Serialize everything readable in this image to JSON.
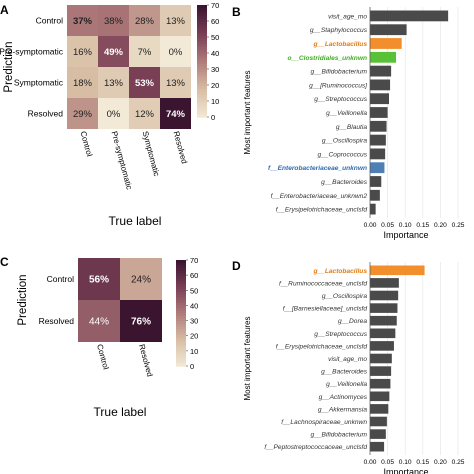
{
  "panels": [
    {
      "id": "A",
      "letter": "A",
      "type": "confusion_matrix",
      "ylabel": "Prediction",
      "xlabel": "True label",
      "rows": [
        "Control",
        "Pre-symptomatic",
        "Symptomatic",
        "Resolved"
      ],
      "cols": [
        "Control",
        "Pre-symptomatic",
        "Symptomatic",
        "Resolved"
      ],
      "values": [
        [
          37,
          38,
          28,
          13
        ],
        [
          16,
          49,
          7,
          0
        ],
        [
          18,
          13,
          53,
          13
        ],
        [
          29,
          0,
          12,
          74
        ]
      ],
      "bold": [
        [
          true,
          false,
          false,
          false
        ],
        [
          false,
          true,
          false,
          false
        ],
        [
          false,
          false,
          true,
          false
        ],
        [
          false,
          false,
          false,
          true
        ]
      ],
      "scale_ticks": [
        0,
        10,
        20,
        30,
        40,
        50,
        60,
        70
      ],
      "scale_max": 70
    },
    {
      "id": "B",
      "letter": "B",
      "type": "bar",
      "ylabel": "Most important features",
      "xlabel": "Importance",
      "features": [
        "visit_age_mo",
        "g__Staphylococcus",
        "g__Lactobacillus",
        "o__Clostridiales_unknwn",
        "g__Bifidobacterium",
        "g__[Ruminococcus]",
        "g__Streptococcus",
        "g__Veillonella",
        "g__Blautia",
        "g__Oscillospira",
        "g__Coprococcus",
        "f__Enterobacteriaceae_unknwn",
        "g__Bacteroides",
        "f__Enterobacteriaceae_unknwn2",
        "f__Erysipelotrichaceae_unclsfd"
      ],
      "values": [
        0.222,
        0.104,
        0.09,
        0.074,
        0.06,
        0.057,
        0.054,
        0.05,
        0.047,
        0.045,
        0.043,
        0.041,
        0.032,
        0.028,
        0.016
      ],
      "highlight": [
        "",
        "",
        "orange",
        "green",
        "",
        "",
        "",
        "",
        "",
        "",
        "",
        "blue",
        "",
        "",
        ""
      ],
      "xticks": [
        "0.00",
        "0.05",
        "0.10",
        "0.15",
        "0.20",
        "0.25"
      ],
      "xlim": [
        0,
        0.25
      ]
    },
    {
      "id": "C",
      "letter": "C",
      "type": "confusion_matrix",
      "ylabel": "Prediction",
      "xlabel": "True label",
      "rows": [
        "Control",
        "Resolved"
      ],
      "cols": [
        "Control",
        "Resolved"
      ],
      "values": [
        [
          56,
          24
        ],
        [
          44,
          76
        ]
      ],
      "bold": [
        [
          true,
          false
        ],
        [
          false,
          true
        ]
      ],
      "scale_ticks": [
        0,
        10,
        20,
        30,
        40,
        50,
        60,
        70
      ],
      "scale_max": 70
    },
    {
      "id": "D",
      "letter": "D",
      "type": "bar",
      "ylabel": "Most important features",
      "xlabel": "Importance",
      "features": [
        "g__Lactobacillus",
        "f__Ruminococcaceae_unclsfd",
        "g__Oscillospira",
        "f__[Barnesiellaceae]_unclsfd",
        "g__Dorea",
        "g__Streptococcus",
        "f__Erysipelotrichaceae_unclsfd",
        "visit_age_mo",
        "g__Bacteroides",
        "g__Veillonella",
        "g__Actinomyces",
        "g__Akkermansia",
        "f__Lachnospiraceae_unknwn",
        "g__Bifidobacterium",
        "f__Peptostreptococcaceae_unclsfd"
      ],
      "values": [
        0.155,
        0.082,
        0.08,
        0.078,
        0.076,
        0.072,
        0.068,
        0.062,
        0.06,
        0.058,
        0.055,
        0.052,
        0.048,
        0.045,
        0.04
      ],
      "highlight": [
        "orange",
        "",
        "",
        "",
        "",
        "",
        "",
        "",
        "",
        "",
        "",
        "",
        "",
        "",
        ""
      ],
      "xticks": [
        "0.00",
        "0.05",
        "0.10",
        "0.15",
        "0.20",
        "0.25"
      ],
      "xlim": [
        0,
        0.25
      ]
    }
  ],
  "colors": {
    "bar": "#4a4a4a",
    "orange": "#f28e2b",
    "green": "#59c135",
    "blue": "#4e7fb5",
    "grid": "#e6e6e6",
    "cm_low": "#f2ead7",
    "cm_high": "#3b1530"
  },
  "chart_data": [
    {
      "type": "heatmap",
      "rows": [
        "Control",
        "Pre-symptomatic",
        "Symptomatic",
        "Resolved"
      ],
      "columns": [
        "Control",
        "Pre-symptomatic",
        "Symptomatic",
        "Resolved"
      ],
      "values": [
        [
          37,
          38,
          28,
          13
        ],
        [
          16,
          49,
          7,
          0
        ],
        [
          18,
          13,
          53,
          13
        ],
        [
          29,
          0,
          12,
          74
        ]
      ],
      "unit": "%",
      "xlabel": "True label",
      "ylabel": "Prediction",
      "color_range": [
        0,
        70
      ]
    },
    {
      "type": "bar",
      "orientation": "horizontal",
      "categories": [
        "visit_age_mo",
        "g__Staphylococcus",
        "g__Lactobacillus",
        "o__Clostridiales_unknwn",
        "g__Bifidobacterium",
        "g__[Ruminococcus]",
        "g__Streptococcus",
        "g__Veillonella",
        "g__Blautia",
        "g__Oscillospira",
        "g__Coprococcus",
        "f__Enterobacteriaceae_unknwn",
        "g__Bacteroides",
        "f__Enterobacteriaceae_unknwn2",
        "f__Erysipelotrichaceae_unclsfd"
      ],
      "values": [
        0.222,
        0.104,
        0.09,
        0.074,
        0.06,
        0.057,
        0.054,
        0.05,
        0.047,
        0.045,
        0.043,
        0.041,
        0.032,
        0.028,
        0.016
      ],
      "xlabel": "Importance",
      "ylabel": "Most important features",
      "xlim": [
        0,
        0.25
      ]
    },
    {
      "type": "heatmap",
      "rows": [
        "Control",
        "Resolved"
      ],
      "columns": [
        "Control",
        "Resolved"
      ],
      "values": [
        [
          56,
          24
        ],
        [
          44,
          76
        ]
      ],
      "unit": "%",
      "xlabel": "True label",
      "ylabel": "Prediction",
      "color_range": [
        0,
        70
      ]
    },
    {
      "type": "bar",
      "orientation": "horizontal",
      "categories": [
        "g__Lactobacillus",
        "f__Ruminococcaceae_unclsfd",
        "g__Oscillospira",
        "f__[Barnesiellaceae]_unclsfd",
        "g__Dorea",
        "g__Streptococcus",
        "f__Erysipelotrichaceae_unclsfd",
        "visit_age_mo",
        "g__Bacteroides",
        "g__Veillonella",
        "g__Actinomyces",
        "g__Akkermansia",
        "f__Lachnospiraceae_unknwn",
        "g__Bifidobacterium",
        "f__Peptostreptococcaceae_unclsfd"
      ],
      "values": [
        0.155,
        0.082,
        0.08,
        0.078,
        0.076,
        0.072,
        0.068,
        0.062,
        0.06,
        0.058,
        0.055,
        0.052,
        0.048,
        0.045,
        0.04
      ],
      "xlabel": "Importance",
      "ylabel": "Most important features",
      "xlim": [
        0,
        0.25
      ]
    }
  ]
}
